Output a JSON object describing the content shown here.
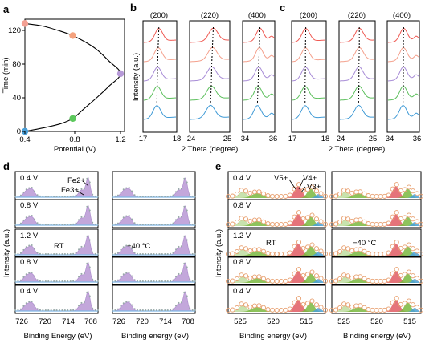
{
  "panels": {
    "a": {
      "label": "a",
      "xlabel": "Potential (V)",
      "ylabel": "Time (min)",
      "xticks": [
        "0.4",
        "0.8",
        "1.2"
      ],
      "yticks": [
        "0",
        "40",
        "80",
        "120"
      ]
    },
    "b": {
      "label": "b",
      "hkl": [
        "(200)",
        "(220)",
        "(400)"
      ],
      "ylabel": "Intensity (a.u.)",
      "xlabel": "2 Theta (degree)",
      "xticks": [
        [
          "17",
          "18"
        ],
        [
          "24",
          "25"
        ],
        [
          "34",
          "36"
        ]
      ]
    },
    "c": {
      "label": "c",
      "hkl": [
        "(200)",
        "(220)",
        "(400)"
      ],
      "xlabel": "2 Theta (degree)",
      "xticks": [
        [
          "17",
          "18"
        ],
        [
          "24",
          "25"
        ],
        [
          "34",
          "36"
        ]
      ]
    },
    "d": {
      "label": "d",
      "ylabel": "Intensity (a.u.)",
      "rows": [
        "0.4 V",
        "0.8 V",
        "1.2 V",
        "0.8 V",
        "0.4 V"
      ],
      "left_condition": "RT",
      "right_condition": "−40 °C",
      "species": [
        "Fe2+",
        "Fe3+"
      ],
      "xticks_left": [
        "726",
        "720",
        "714",
        "708"
      ],
      "xticks_right": [
        "726",
        "720",
        "714",
        "708"
      ],
      "xlabel_left": "Binding Energy (eV)",
      "xlabel_right": "Binding energy (eV)"
    },
    "e": {
      "label": "e",
      "ylabel": "Intensity (a.u.)",
      "rows": [
        "0.4 V",
        "0.8 V",
        "1.2 V",
        "0.8 V",
        "0.4 V"
      ],
      "left_condition": "RT",
      "right_condition": "−40 °C",
      "species": [
        "V5+",
        "V4+",
        "V3+"
      ],
      "xticks_left": [
        "525",
        "520",
        "515"
      ],
      "xticks_right": [
        "525",
        "520",
        "515"
      ],
      "xlabel_left": "Binding energy (eV)",
      "xlabel_right": "Binding energy (eV)"
    }
  },
  "chart_data": [
    {
      "type": "line",
      "panel": "a",
      "xlabel": "Potential (V)",
      "ylabel": "Time (min)",
      "xlim": [
        0.4,
        1.2
      ],
      "ylim": [
        0,
        130
      ],
      "x": [
        0.4,
        0.55,
        0.7,
        0.8,
        0.9,
        1.0,
        1.1,
        1.2,
        1.1,
        1.0,
        0.9,
        0.8,
        0.7,
        0.55,
        0.4
      ],
      "y": [
        125,
        122,
        116,
        111,
        104,
        95,
        82,
        67,
        52,
        39,
        27,
        15,
        9,
        4,
        0
      ],
      "markers": [
        {
          "x": 0.4,
          "y": 125,
          "color": "#f3a093"
        },
        {
          "x": 0.8,
          "y": 111,
          "color": "#f4a27e"
        },
        {
          "x": 1.2,
          "y": 67,
          "color": "#b79ad8"
        },
        {
          "x": 0.8,
          "y": 15,
          "color": "#5cc85c"
        },
        {
          "x": 0.4,
          "y": 0,
          "color": "#4a9fd8"
        }
      ]
    }
  ],
  "colors": {
    "stack": [
      "#ef5a53",
      "#f4a08c",
      "#a78bd6",
      "#5bbf5b",
      "#3f9ad6"
    ],
    "fe_fill": "#b08ad0",
    "fe_fill_dark": "#8d5fb8",
    "fe_base": "#7fb7e6",
    "v5": "#e05a63",
    "v4": "#7ab840",
    "v3": "#4aa0d6",
    "v_extra": "#bedda0",
    "circle": "#e8a070"
  }
}
